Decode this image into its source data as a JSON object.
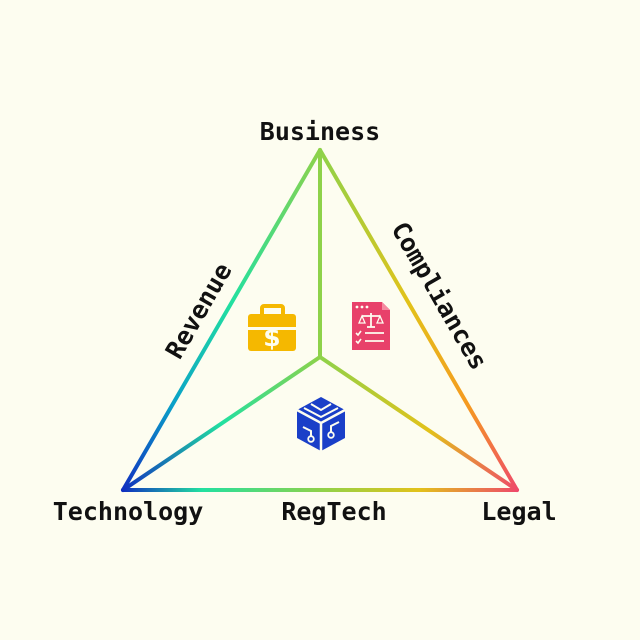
{
  "background": "#fdfdf0",
  "vertices": {
    "top": "Business",
    "left": "Technology",
    "right": "Legal"
  },
  "edges": {
    "left": "Revenue",
    "right": "Compliances",
    "bottom": "RegTech"
  },
  "icons": [
    {
      "name": "briefcase-dollar-icon",
      "color": "#f5b800"
    },
    {
      "name": "legal-document-icon",
      "color": "#e8416a"
    },
    {
      "name": "circuit-cube-icon",
      "color": "#1a3fc8"
    }
  ],
  "colors": {
    "green": "#8ed24a",
    "mint": "#22e0a0",
    "blue": "#1030c0",
    "yellow": "#e2c21a",
    "orange": "#f59a20",
    "pink": "#ee4a6a"
  }
}
